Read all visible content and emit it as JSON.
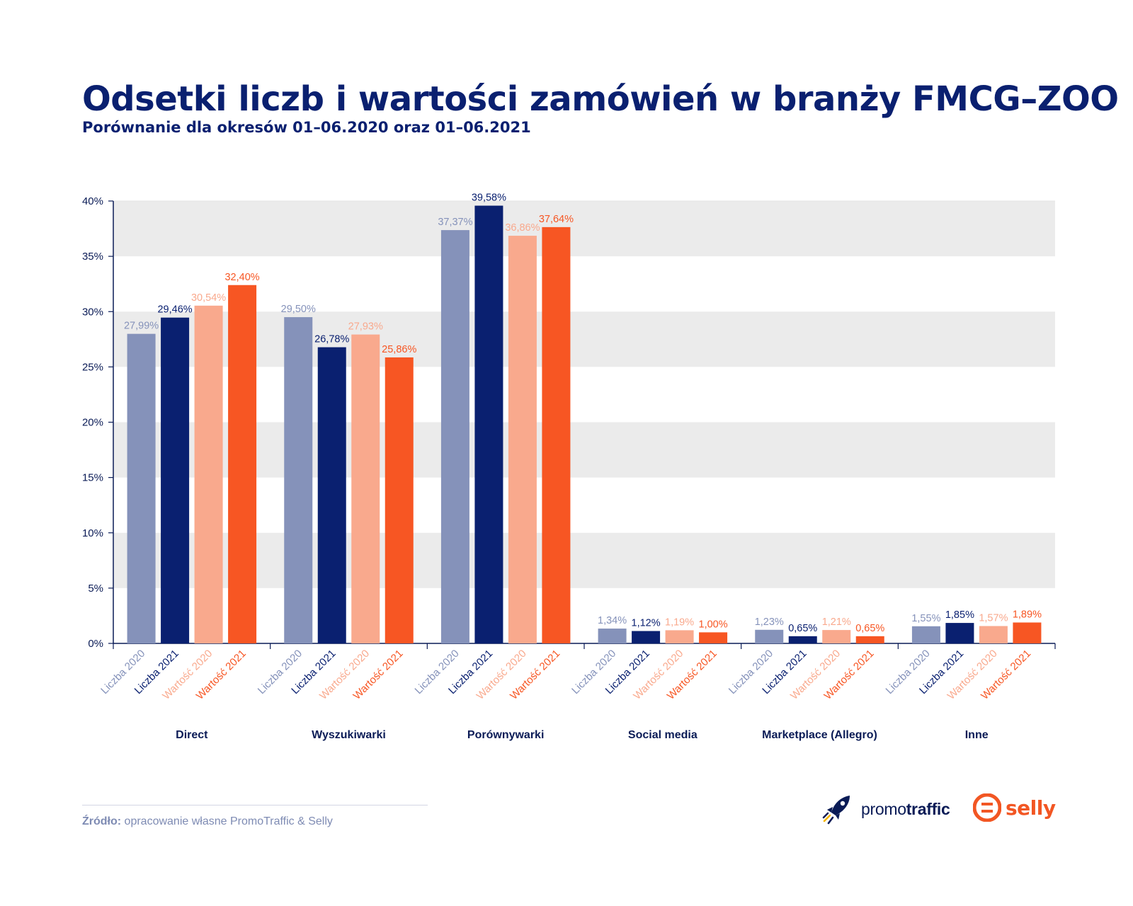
{
  "title": "Odsetki liczb i wartości zamówień w branży FMCG–ZOO",
  "subtitle": "Porównanie dla okresów 01–06.2020 oraz 01–06.2021",
  "colors": {
    "title": "#0a2070",
    "liczba_2020": "#8592ba",
    "liczba_2021": "#0a2070",
    "wartosc_2020": "#f9a98d",
    "wartosc_2021": "#f75623",
    "band": "#ebebeb",
    "axis": "#0a1b56"
  },
  "chart_data": {
    "type": "bar",
    "title": "Odsetki liczb i wartości zamówień w branży FMCG–ZOO",
    "subtitle": "Porównanie dla okresów 01–06.2020 oraz 01–06.2021",
    "xlabel": "",
    "ylabel": "",
    "ylim": [
      0,
      40
    ],
    "yticks": [
      0,
      5,
      10,
      15,
      20,
      25,
      30,
      35,
      40
    ],
    "ytick_labels": [
      "0%",
      "5%",
      "10%",
      "15%",
      "20%",
      "25%",
      "30%",
      "35%",
      "40%"
    ],
    "grid": "alternating horizontal bands",
    "categories": [
      "Direct",
      "Wyszukiwarki",
      "Porównywarki",
      "Social media",
      "Marketplace (Allegro)",
      "Inne"
    ],
    "series": [
      {
        "name": "Liczba 2020",
        "color": "#8592ba",
        "values": [
          27.99,
          29.5,
          37.37,
          1.34,
          1.23,
          1.55
        ],
        "labels": [
          "27,99%",
          "29,50%",
          "37,37%",
          "1,34%",
          "1,23%",
          "1,55%"
        ]
      },
      {
        "name": "Liczba 2021",
        "color": "#0a2070",
        "values": [
          29.46,
          26.78,
          39.58,
          1.12,
          0.65,
          1.85
        ],
        "labels": [
          "29,46%",
          "26,78%",
          "39,58%",
          "1,12%",
          "0,65%",
          "1,85%"
        ]
      },
      {
        "name": "Wartość 2020",
        "color": "#f9a98d",
        "values": [
          30.54,
          27.93,
          36.86,
          1.19,
          1.21,
          1.57
        ],
        "labels": [
          "30,54%",
          "27,93%",
          "36,86%",
          "1,19%",
          "1,21%",
          "1,57%"
        ]
      },
      {
        "name": "Wartość 2021",
        "color": "#f75623",
        "values": [
          32.4,
          25.86,
          37.64,
          1.0,
          0.65,
          1.89
        ],
        "labels": [
          "32,40%",
          "25,86%",
          "37,64%",
          "1,00%",
          "0,65%",
          "1,89%"
        ]
      }
    ]
  },
  "footer": {
    "source_label": "Źródło:",
    "source_text": " opracowanie własne PromoTraffic & Selly"
  },
  "logos": {
    "promotraffic_part1": "promo",
    "promotraffic_part2": "traffic",
    "selly": "selly"
  }
}
